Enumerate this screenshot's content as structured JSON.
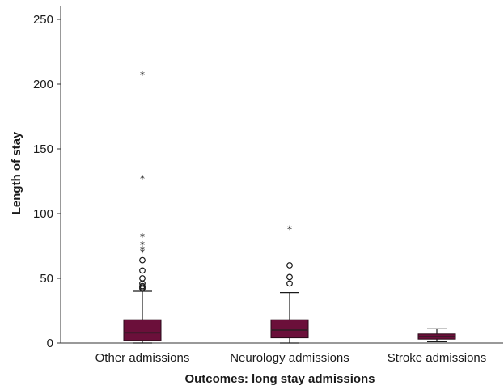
{
  "chart_data": {
    "type": "boxplot",
    "title": "",
    "xlabel": "Outcomes: long stay admissions",
    "ylabel": "Length of stay",
    "ylim": [
      0,
      260
    ],
    "yticks": [
      0,
      50,
      100,
      150,
      200,
      250
    ],
    "box_color": "#6b0f3a",
    "categories": [
      "Other admissions",
      "Neurology admissions",
      "Stroke admissions"
    ],
    "boxes": [
      {
        "category": "Other admissions",
        "min": 0,
        "q1": 2,
        "median": 8,
        "q3": 18,
        "max": 40,
        "outliers_circle": [
          42,
          43,
          44,
          46,
          50,
          56,
          64
        ],
        "outliers_star": [
          71,
          73,
          77,
          83,
          128,
          208
        ]
      },
      {
        "category": "Neurology admissions",
        "min": 0,
        "q1": 4,
        "median": 10,
        "q3": 18,
        "max": 39,
        "outliers_circle": [
          46,
          51,
          60
        ],
        "outliers_star": [
          89
        ]
      },
      {
        "category": "Stroke admissions",
        "min": 1,
        "q1": 3,
        "median": 5,
        "q3": 7,
        "max": 11,
        "outliers_circle": [],
        "outliers_star": []
      }
    ]
  }
}
